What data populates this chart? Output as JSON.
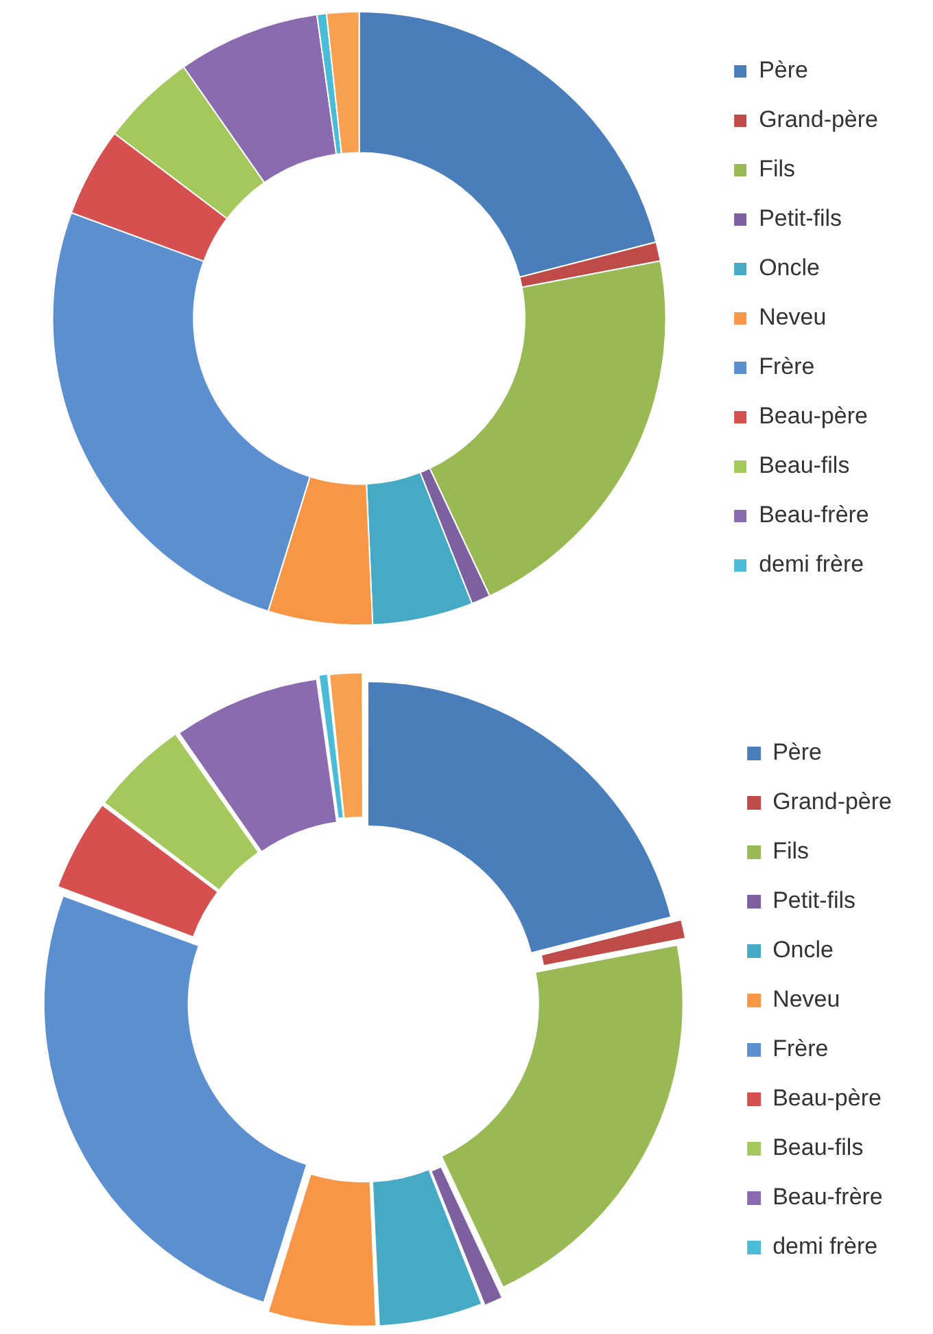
{
  "chart_data": [
    {
      "type": "donut",
      "categories": [
        "Père",
        "Grand-père",
        "Fils",
        "Petit-fils",
        "Oncle",
        "Neveu",
        "Frère",
        "Beau-père",
        "Beau-fils",
        "Beau-frère",
        "demi frère",
        null
      ],
      "values": [
        21,
        1,
        21,
        1,
        5.3,
        5.5,
        25.8,
        4.7,
        5,
        7.5,
        0.5,
        1.7
      ],
      "colors": [
        "#4a7ebb",
        "#be4b48",
        "#98b954",
        "#7d60a0",
        "#46aac5",
        "#f79646",
        "#5b8fd0",
        "#d65050",
        "#a5c85c",
        "#8a6bb0",
        "#4bbcd8",
        "#f7a050"
      ],
      "legend": "right"
    },
    {
      "type": "donut",
      "categories": [
        "Père",
        "Grand-père",
        "Fils",
        "Petit-fils",
        "Oncle",
        "Neveu",
        "Frère",
        "Beau-père",
        "Beau-fils",
        "Beau-frère",
        "demi frère",
        null
      ],
      "values": [
        21,
        1,
        21,
        1,
        5.3,
        5.5,
        25.8,
        4.7,
        5,
        7.5,
        0.5,
        1.7
      ],
      "colors": [
        "#4a7ebb",
        "#be4b48",
        "#98b954",
        "#7d60a0",
        "#46aac5",
        "#f79646",
        "#5b8fd0",
        "#d65050",
        "#a5c85c",
        "#8a6bb0",
        "#4bbcd8",
        "#f7a050"
      ],
      "legend": "right"
    }
  ]
}
